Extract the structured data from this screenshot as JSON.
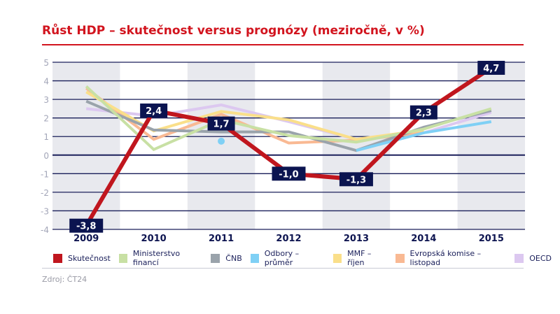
{
  "chart_data": {
    "type": "line",
    "title": "Růst HDP – skutečnost versus prognózy (meziročně, v %)",
    "categories": [
      "2009",
      "2010",
      "2011",
      "2012",
      "2013",
      "2014",
      "2015"
    ],
    "ylim": [
      -4,
      5
    ],
    "yticks": [
      "-4",
      "-3",
      "-2",
      "-1",
      "0",
      "1",
      "2",
      "3",
      "4",
      "5"
    ],
    "grid": true,
    "legend_position": "bottom",
    "series": [
      {
        "name": "Skutečnost",
        "color": "#c0161e",
        "values": [
          -3.8,
          2.4,
          1.7,
          -1.0,
          -1.3,
          2.3,
          4.7
        ],
        "labels": [
          "-3,8",
          "2,4",
          "1,7",
          "-1,0",
          "-1,3",
          "2,3",
          "4,7"
        ]
      },
      {
        "name": "Ministerstvo financí",
        "color": "#c8e0a4",
        "values": [
          3.7,
          0.3,
          1.9,
          1.05,
          0.7,
          1.4,
          2.5
        ]
      },
      {
        "name": "ČNB",
        "color": "#9aa3ab",
        "values": [
          2.9,
          1.35,
          1.25,
          1.25,
          0.25,
          1.5,
          2.4
        ]
      },
      {
        "name": "Odbory – průměr",
        "color": "#7fd0f5",
        "values": [
          null,
          null,
          0.75,
          null,
          0.25,
          1.2,
          1.8
        ]
      },
      {
        "name": "MMF – říjen",
        "color": "#fadf8a",
        "values": [
          3.4,
          1.3,
          2.35,
          1.9,
          0.85,
          1.35,
          null
        ]
      },
      {
        "name": "Evropská komise – listopad",
        "color": "#f9b993",
        "values": [
          3.6,
          0.85,
          2.2,
          0.65,
          0.8,
          1.2,
          null
        ]
      },
      {
        "name": "OECD",
        "color": "#dcc8f0",
        "values": [
          2.5,
          2.1,
          2.7,
          1.8,
          0.85,
          1.2,
          2.3
        ]
      }
    ]
  },
  "source": "Zdroj: ČT24"
}
